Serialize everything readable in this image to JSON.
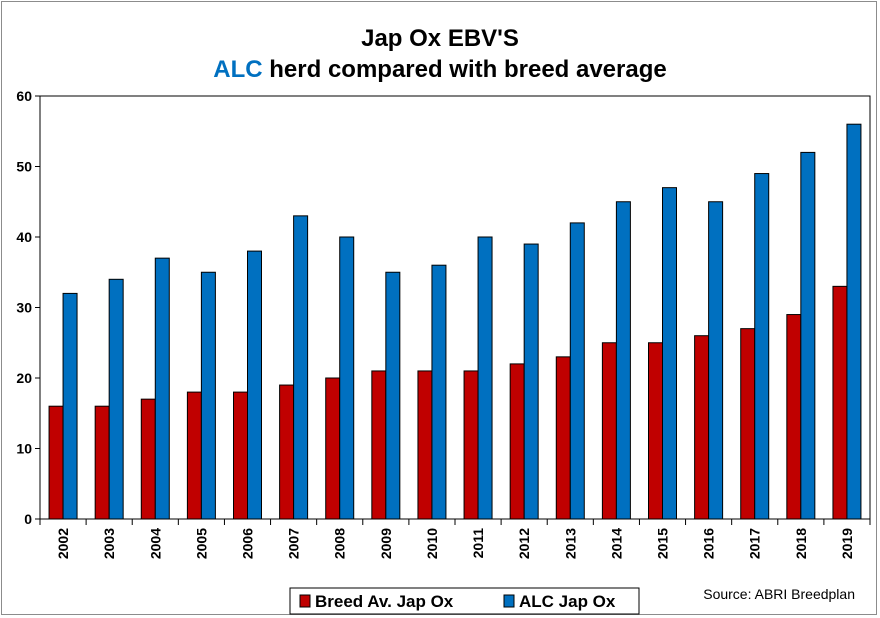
{
  "chart_data": {
    "type": "bar",
    "title": "Jap Ox EBV'S",
    "subtitle_highlight": "ALC",
    "subtitle_rest": " herd compared with breed average",
    "categories": [
      "2002",
      "2003",
      "2004",
      "2005",
      "2006",
      "2007",
      "2008",
      "2009",
      "2010",
      "2011",
      "2012",
      "2013",
      "2014",
      "2015",
      "2016",
      "2017",
      "2018",
      "2019"
    ],
    "series": [
      {
        "name": "Breed Av. Jap Ox",
        "color": "#c00000",
        "values": [
          16,
          16,
          17,
          18,
          18,
          19,
          20,
          21,
          21,
          21,
          22,
          23,
          25,
          25,
          26,
          27,
          29,
          33
        ]
      },
      {
        "name": "ALC Jap Ox",
        "color": "#0070c0",
        "values": [
          32,
          34,
          37,
          35,
          38,
          43,
          40,
          35,
          36,
          40,
          39,
          42,
          45,
          47,
          45,
          49,
          52,
          56
        ]
      }
    ],
    "ylim": [
      0,
      60
    ],
    "yticks": [
      "0",
      "10",
      "20",
      "30",
      "40",
      "50",
      "60"
    ],
    "grid": false,
    "legend_position": "bottom",
    "source": "Source: ABRI Breedplan",
    "colors": {
      "highlight": "#0070c0"
    }
  }
}
